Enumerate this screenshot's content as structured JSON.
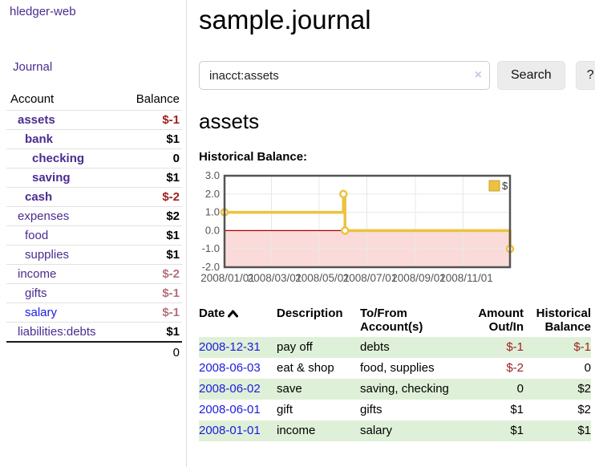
{
  "app": {
    "brand": "hledger-web"
  },
  "sidebar": {
    "nav": {
      "journal_label": "Journal"
    },
    "columns": {
      "account": "Account",
      "balance": "Balance"
    },
    "accounts": [
      {
        "name": "assets",
        "indent": 0,
        "balance": "$-1",
        "bold": true,
        "neg": "strong"
      },
      {
        "name": "bank",
        "indent": 1,
        "balance": "$1",
        "bold": true
      },
      {
        "name": "checking",
        "indent": 2,
        "balance": "0",
        "bold": true
      },
      {
        "name": "saving",
        "indent": 2,
        "balance": "$1",
        "bold": true
      },
      {
        "name": "cash",
        "indent": 1,
        "balance": "$-2",
        "bold": true,
        "neg": "strong"
      },
      {
        "name": "expenses",
        "indent": 0,
        "balance": "$2"
      },
      {
        "name": "food",
        "indent": 1,
        "balance": "$1"
      },
      {
        "name": "supplies",
        "indent": 1,
        "balance": "$1"
      },
      {
        "name": "income",
        "indent": 0,
        "balance": "$-2",
        "neg": "soft"
      },
      {
        "name": "gifts",
        "indent": 1,
        "balance": "$-1",
        "neg": "soft"
      },
      {
        "name": "salary",
        "indent": 1,
        "balance": "$-1",
        "neg": "soft",
        "blue": true
      },
      {
        "name": "liabilities:debts",
        "indent": 0,
        "balance": "$1"
      }
    ],
    "total": "0"
  },
  "header": {
    "title": "sample.journal"
  },
  "search": {
    "value": "inacct:assets",
    "clear_icon": "×",
    "button_label": "Search",
    "help_label": "?"
  },
  "account_page": {
    "title": "assets",
    "chart_label": "Historical Balance:"
  },
  "chart_data": {
    "type": "line",
    "title": "Historical Balance:",
    "step": true,
    "series": [
      {
        "name": "$",
        "color": "#edc240",
        "points": [
          [
            "2008-01-01",
            1
          ],
          [
            "2008-06-01",
            2
          ],
          [
            "2008-06-03",
            0
          ],
          [
            "2008-12-31",
            -1
          ]
        ]
      }
    ],
    "ylim": [
      -2,
      3
    ],
    "yticks": [
      "3.0",
      "2.0",
      "1.0",
      "0.0",
      "-1.0",
      "-2.0"
    ],
    "xticks": [
      "2008/01/01",
      "2008/03/01",
      "2008/05/01",
      "2008/07/01",
      "2008/09/01",
      "2008/11/01"
    ],
    "x_range": [
      "2008-01-01",
      "2008-12-31"
    ],
    "grid": true,
    "legend_position": "top-right",
    "colors": {
      "border": "#545454",
      "grid": "#e8e8e8",
      "tick_text": "#555555",
      "negative_region_fill": "#fbdada",
      "zero_line": "#a40000",
      "point_fill": "#ffffff"
    }
  },
  "register": {
    "columns": [
      "Date",
      "Description",
      "To/From Account(s)",
      "Amount Out/In",
      "Historical Balance"
    ],
    "rows": [
      {
        "date": "2008-12-31",
        "description": "pay off",
        "accounts": "debts",
        "amount": "$-1",
        "balance": "$-1",
        "amount_neg": true,
        "balance_neg": true
      },
      {
        "date": "2008-06-03",
        "description": "eat & shop",
        "accounts": "food, supplies",
        "amount": "$-2",
        "balance": "0",
        "amount_neg": true
      },
      {
        "date": "2008-06-02",
        "description": "save",
        "accounts": "saving, checking",
        "amount": "0",
        "balance": "$2"
      },
      {
        "date": "2008-06-01",
        "description": "gift",
        "accounts": "gifts",
        "amount": "$1",
        "balance": "$2"
      },
      {
        "date": "2008-01-01",
        "description": "income",
        "accounts": "salary",
        "amount": "$1",
        "balance": "$1"
      }
    ]
  },
  "colors": {
    "brand_purple": "#4a2c8f",
    "link_blue": "#1b1be0",
    "negative_strong": "#9e1e1e",
    "negative_soft": "#b4707c",
    "row_stripe_green": "#dff0d8",
    "chart_gold": "#edc240"
  }
}
